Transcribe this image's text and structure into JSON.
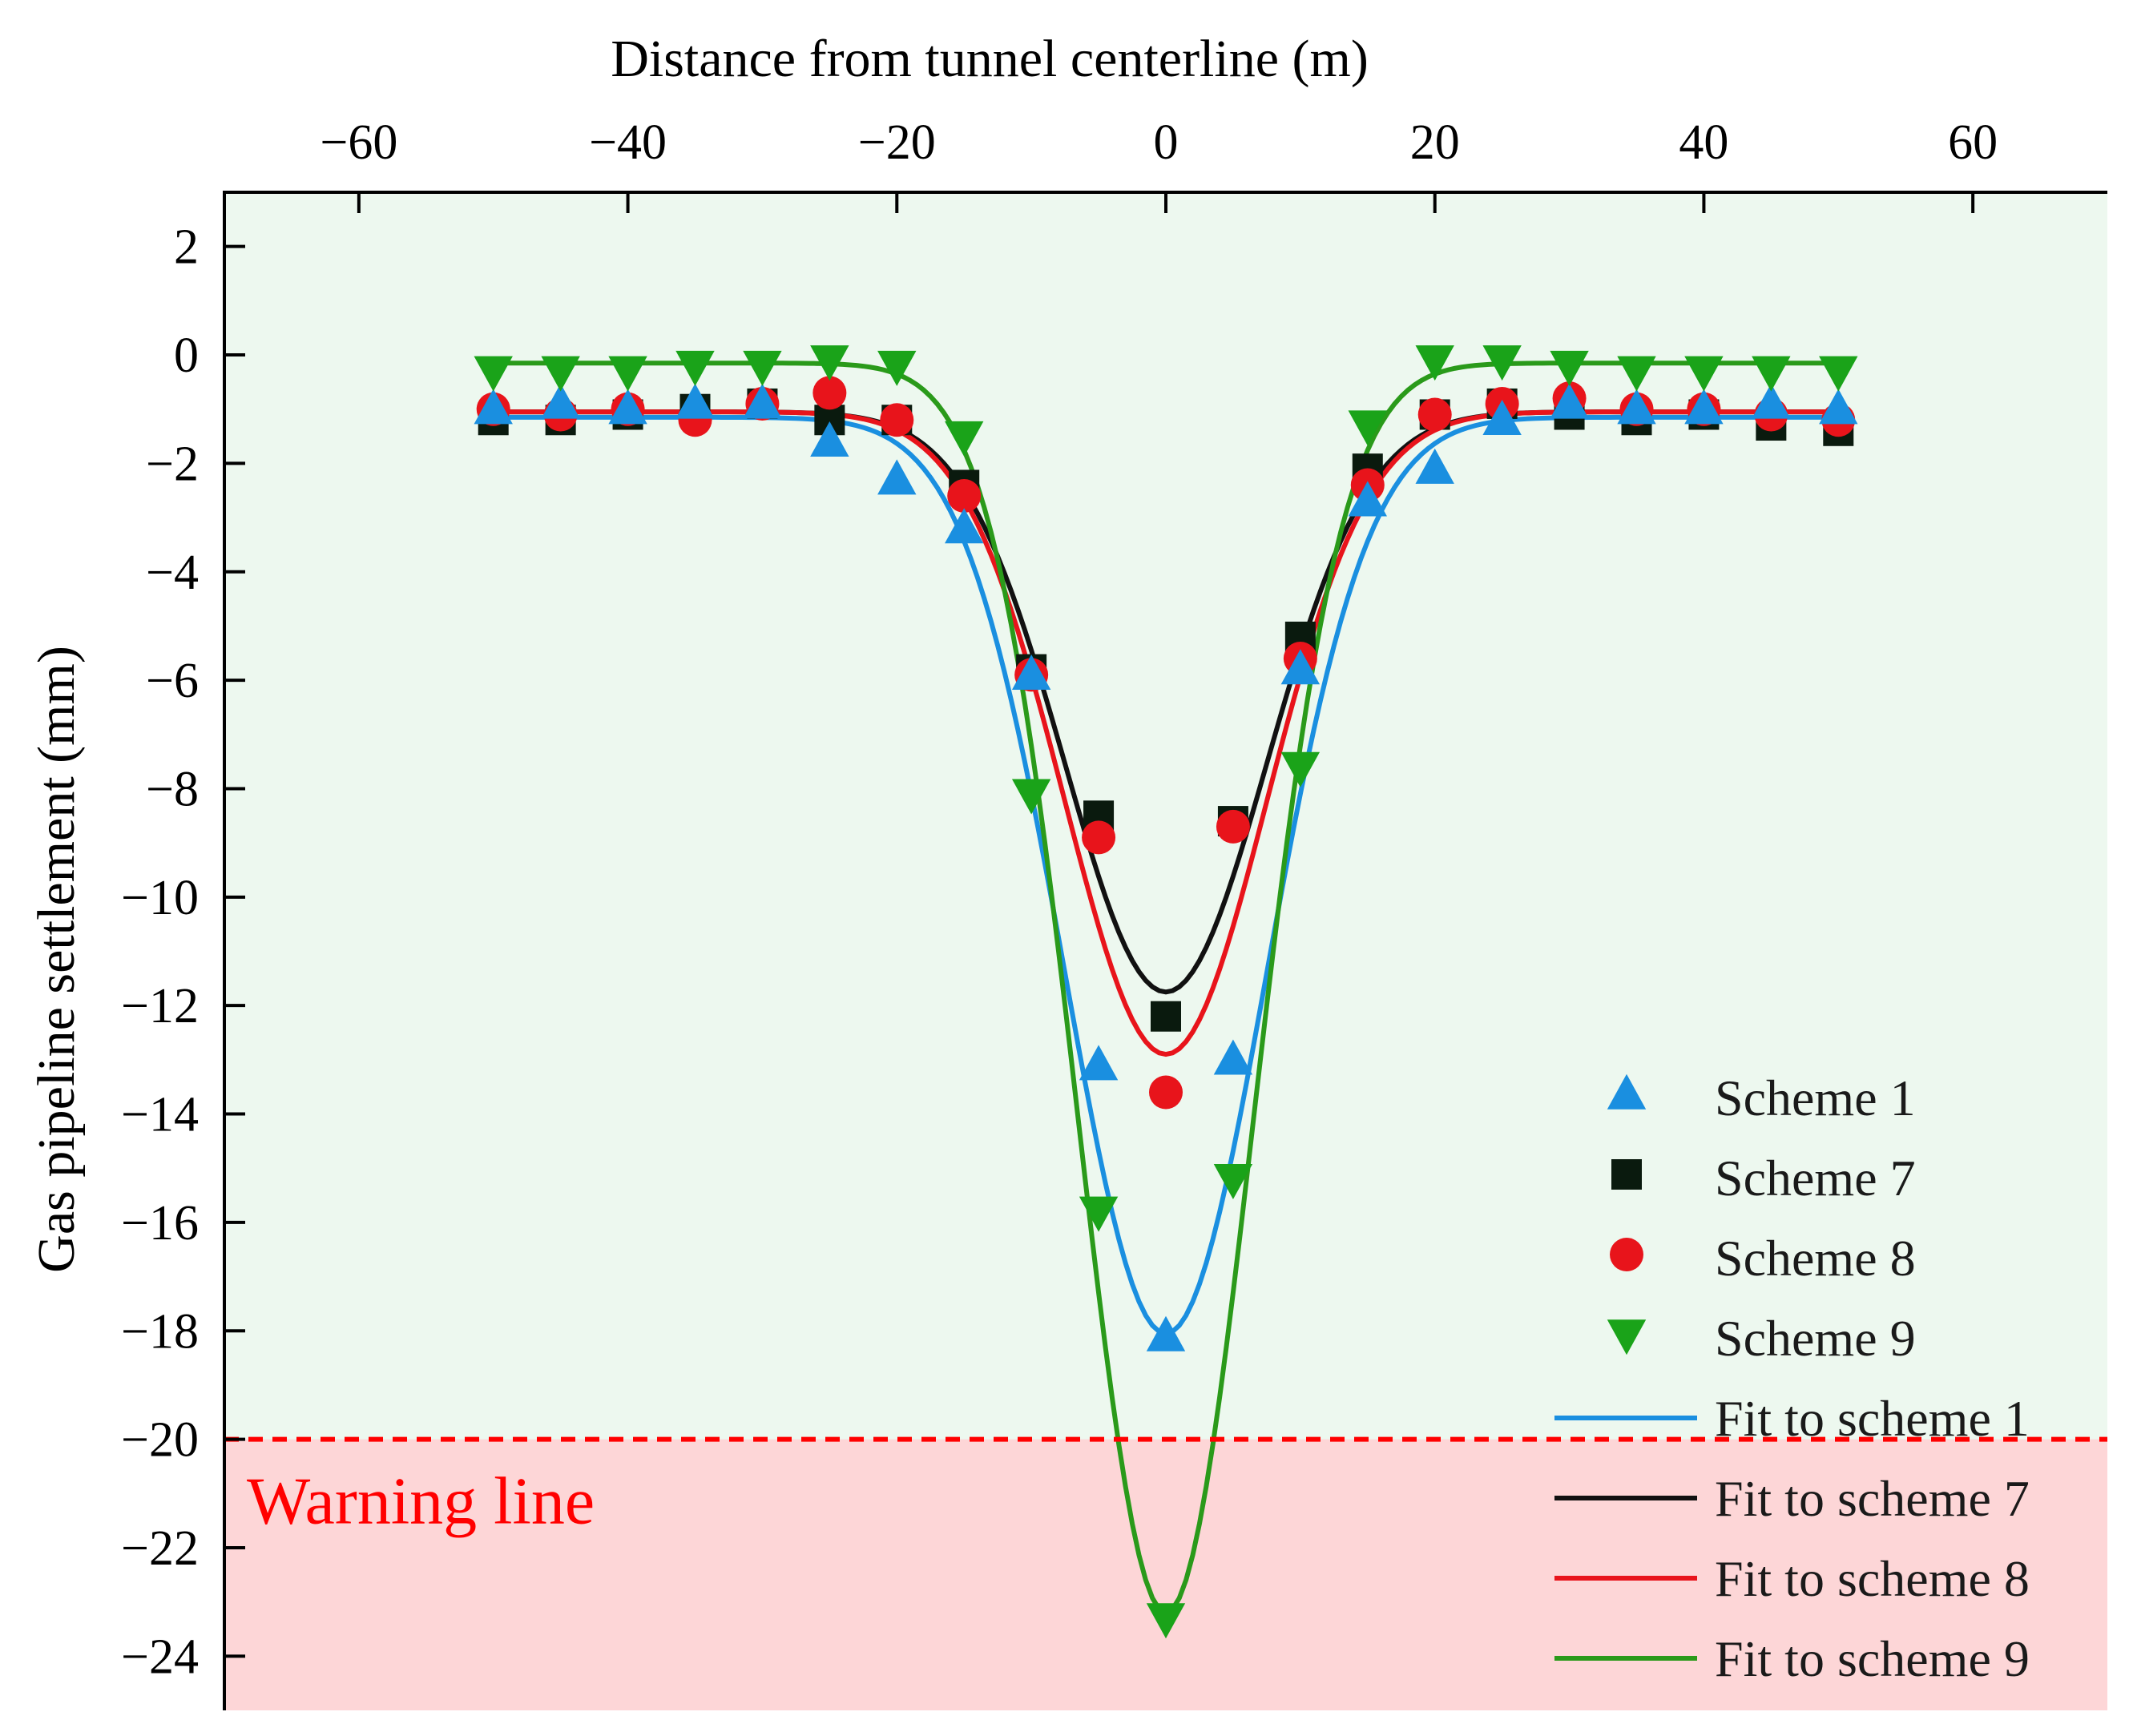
{
  "chart_data": {
    "type": "scatter",
    "title": "",
    "xlabel": "Distance from tunnel centerline (m)",
    "ylabel": "Gas pipeline settlement (mm)",
    "xlim": [
      -70,
      70
    ],
    "ylim": [
      -25,
      3
    ],
    "xticks": [
      -60,
      -40,
      -20,
      0,
      20,
      40,
      60
    ],
    "yticks": [
      2,
      0,
      -2,
      -4,
      -6,
      -8,
      -10,
      -12,
      -14,
      -16,
      -18,
      -20,
      -22,
      -24
    ],
    "xtick_labels": [
      "−60",
      "−40",
      "−20",
      "0",
      "20",
      "40",
      "60"
    ],
    "ytick_labels": [
      "2",
      "0",
      "−2",
      "−4",
      "−6",
      "−8",
      "−10",
      "−12",
      "−14",
      "−16",
      "−18",
      "−20",
      "−22",
      "−24"
    ],
    "x_axis_position": "top",
    "grid": false,
    "legend_position": "bottom-right",
    "warning": {
      "label": "Warning line",
      "y": -20,
      "color": "#ff0000",
      "safe_color": "#edf8ef",
      "danger_color": "#fdd6d7"
    },
    "x": [
      -50,
      -45,
      -40,
      -35,
      -30,
      -25,
      -20,
      -15,
      -10,
      -5,
      0,
      5,
      10,
      15,
      20,
      25,
      30,
      35,
      40,
      45,
      50
    ],
    "series": [
      {
        "name": "Scheme 1",
        "marker": "triangle-up",
        "color": "#1a8fe0",
        "values": [
          -1.0,
          -0.9,
          -1.0,
          -0.9,
          -0.9,
          -1.6,
          -2.3,
          -3.2,
          -5.9,
          -13.1,
          -18.1,
          -13.0,
          -5.8,
          -2.7,
          -2.1,
          -1.2,
          -0.9,
          -1.0,
          -1.0,
          -0.9,
          -1.0
        ]
      },
      {
        "name": "Scheme 7",
        "marker": "square",
        "color": "#0a1a0e",
        "values": [
          -1.2,
          -1.2,
          -1.1,
          -1.0,
          -0.9,
          -1.2,
          -1.2,
          -2.4,
          -5.8,
          -8.5,
          -12.2,
          -8.6,
          -5.2,
          -2.1,
          -1.1,
          -0.9,
          -1.1,
          -1.2,
          -1.1,
          -1.3,
          -1.4
        ]
      },
      {
        "name": "Scheme 8",
        "marker": "circle",
        "color": "#e8141b",
        "values": [
          -1.0,
          -1.1,
          -1.0,
          -1.2,
          -0.9,
          -0.7,
          -1.2,
          -2.6,
          -5.9,
          -8.9,
          -13.6,
          -8.7,
          -5.6,
          -2.4,
          -1.1,
          -0.9,
          -0.8,
          -1.0,
          -1.0,
          -1.1,
          -1.2
        ]
      },
      {
        "name": "Scheme 9",
        "marker": "triangle-down",
        "color": "#1aa319",
        "values": [
          -0.3,
          -0.3,
          -0.3,
          -0.2,
          -0.2,
          -0.1,
          -0.2,
          -1.5,
          -8.1,
          -15.8,
          -23.3,
          -15.2,
          -7.6,
          -1.3,
          -0.1,
          -0.1,
          -0.2,
          -0.3,
          -0.3,
          -0.3,
          -0.3
        ]
      }
    ],
    "fits": [
      {
        "name": "Fit to scheme 1",
        "color": "#1a8fe0",
        "baseline": -1.15,
        "depth": 16.9,
        "width": 7.5
      },
      {
        "name": "Fit to scheme 7",
        "color": "#111111",
        "baseline": -1.05,
        "depth": 10.7,
        "width": 7.5
      },
      {
        "name": "Fit to scheme 8",
        "color": "#e8141b",
        "baseline": -1.05,
        "depth": 11.85,
        "width": 7.5
      },
      {
        "name": "Fit to scheme 9",
        "color": "#2a9a1a",
        "baseline": -0.15,
        "depth": 23.05,
        "width": 6.5
      }
    ]
  }
}
